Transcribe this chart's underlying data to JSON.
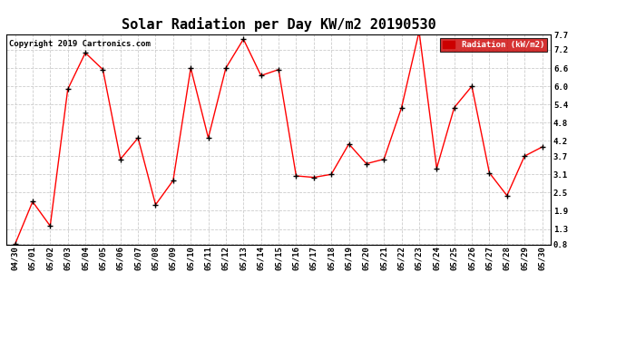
{
  "title": "Solar Radiation per Day KW/m2 20190530",
  "copyright_text": "Copyright 2019 Cartronics.com",
  "legend_label": "Radiation (kW/m2)",
  "dates": [
    "04/30",
    "05/01",
    "05/02",
    "05/03",
    "05/04",
    "05/05",
    "05/06",
    "05/07",
    "05/08",
    "05/09",
    "05/10",
    "05/11",
    "05/12",
    "05/13",
    "05/14",
    "05/15",
    "05/16",
    "05/17",
    "05/18",
    "05/19",
    "05/20",
    "05/21",
    "05/22",
    "05/23",
    "05/24",
    "05/25",
    "05/26",
    "05/27",
    "05/28",
    "05/29",
    "05/30"
  ],
  "values": [
    0.8,
    2.2,
    1.4,
    5.9,
    7.1,
    6.55,
    3.6,
    4.3,
    2.1,
    2.9,
    6.6,
    4.3,
    6.6,
    7.55,
    6.35,
    6.55,
    3.05,
    3.0,
    3.1,
    4.1,
    3.45,
    3.6,
    5.3,
    7.8,
    3.3,
    5.3,
    6.0,
    3.15,
    2.4,
    3.7,
    4.0
  ],
  "line_color": "red",
  "marker": "+",
  "marker_color": "black",
  "marker_size": 5,
  "marker_linewidth": 1.0,
  "line_width": 1.0,
  "ylim": [
    0.8,
    7.7
  ],
  "yticks": [
    0.8,
    1.3,
    1.9,
    2.5,
    3.1,
    3.7,
    4.2,
    4.8,
    5.4,
    6.0,
    6.6,
    7.2,
    7.7
  ],
  "grid_color": "#cccccc",
  "grid_style": "--",
  "bg_color": "#ffffff",
  "legend_bg": "#cc0000",
  "legend_text_color": "#ffffff",
  "title_fontsize": 11,
  "tick_fontsize": 6.5,
  "copyright_fontsize": 6.5,
  "legend_fontsize": 6.5
}
